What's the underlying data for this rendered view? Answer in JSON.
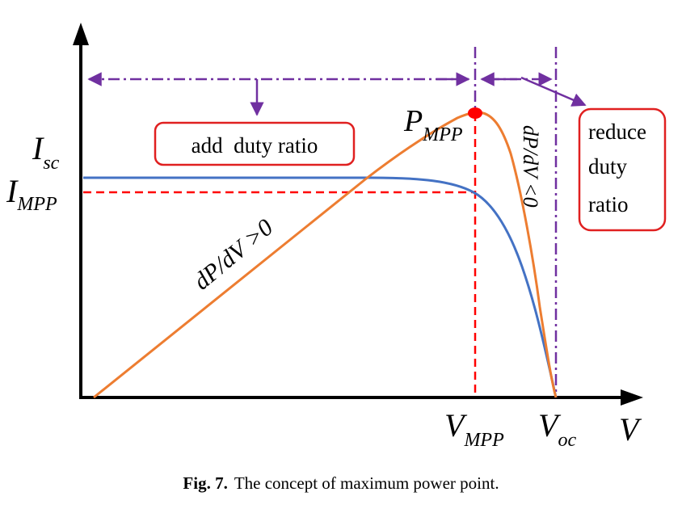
{
  "figure": {
    "y_axis_labels": {
      "isc_main": "I",
      "isc_sub": "sc",
      "impp_main": "I",
      "impp_sub": "MPP"
    },
    "x_axis_labels": {
      "vmpp_main": "V",
      "vmpp_sub": "MPP",
      "voc_main": "V",
      "voc_sub": "oc",
      "axis_v": "V"
    },
    "point_label": {
      "main": "P",
      "sub": "MPP"
    },
    "left_slope_label": "dP/dV >0",
    "right_slope_label": "dP/dV <0",
    "add_box_label": "add  duty ratio",
    "reduce_box_lines": [
      "reduce",
      "duty",
      "ratio"
    ],
    "colors": {
      "iv_curve": "#4472c4",
      "pv_curve": "#ed7d31",
      "dashed_red": "#ff0000",
      "arrows": "#7030a0",
      "box_border": "#e02020",
      "axes": "#000000"
    }
  },
  "caption": {
    "number": "Fig. 7.",
    "text": "The concept of maximum power point."
  }
}
